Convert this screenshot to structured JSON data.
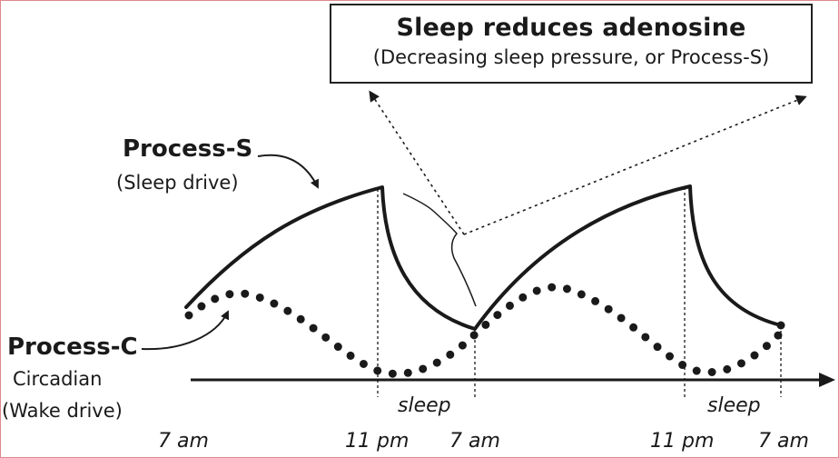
{
  "title_box": {
    "heading": "Sleep reduces adenosine",
    "subheading": "(Decreasing sleep pressure, or Process-S)"
  },
  "process_s": {
    "label": "Process-S",
    "sublabel": "(Sleep drive)"
  },
  "process_c": {
    "label": "Process-C",
    "sublabel_1": "Circadian",
    "sublabel_2": "(Wake drive)"
  },
  "sleep_labels": [
    "sleep",
    "sleep"
  ],
  "time_labels": [
    "7 am",
    "11 pm",
    "7 am",
    "11 pm",
    "7 am"
  ],
  "colors": {
    "line": "#1a1a1a",
    "frame_border": "#e0898e"
  }
}
